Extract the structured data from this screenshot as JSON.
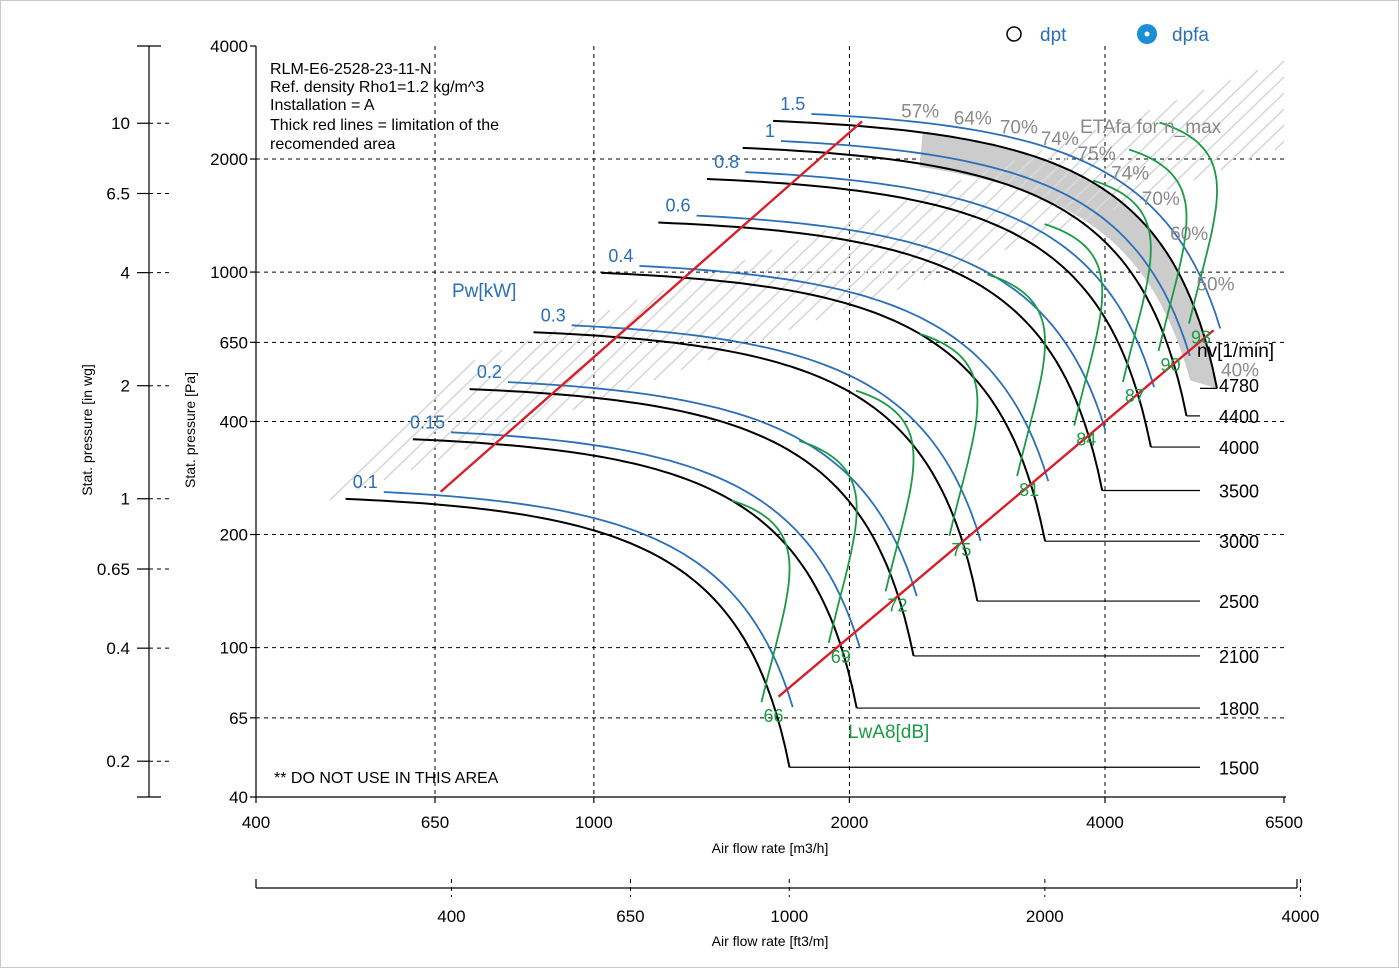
{
  "chart_data": {
    "type": "line",
    "info_lines": [
      "RLM-E6-2528-23-11-N",
      "Ref. density Rho1=1.2 kg/m^3",
      "Installation = A",
      "Thick red lines = limitation of the",
      "recomended area"
    ],
    "warning_note": "** DO NOT USE IN THIS AREA",
    "legend": {
      "items": [
        {
          "label": "dpt",
          "marker": "open-circle"
        },
        {
          "label": "dpfa",
          "marker": "filled-circle-dot"
        }
      ]
    },
    "x_axis": {
      "label": "Air flow rate [m3/h]",
      "scale": "log",
      "range": [
        400,
        6500
      ],
      "ticks": [
        400,
        650,
        1000,
        2000,
        4000,
        6500
      ]
    },
    "x2_axis": {
      "label": "Air flow rate [ft3/m]",
      "scale": "log",
      "ticks": [
        400,
        650,
        1000,
        2000,
        4000
      ]
    },
    "y_axis": {
      "label": "Stat. pressure [Pa]",
      "scale": "log",
      "range": [
        40,
        4000
      ],
      "ticks": [
        40,
        65,
        100,
        200,
        400,
        650,
        1000,
        2000,
        4000
      ]
    },
    "y2_axis": {
      "label": "Stat. pressure [in wg]",
      "scale": "log",
      "ticks": [
        0.2,
        0.4,
        0.65,
        1,
        2,
        4,
        6.5,
        10
      ]
    },
    "speed_header": "nv[1/min]",
    "speed_curves": [
      {
        "rpm": "1500",
        "max_q": 1700,
        "max_p": 258,
        "end_q": 1700,
        "end_p": 48
      },
      {
        "rpm": "1800",
        "max_q": 2040,
        "max_p": 372,
        "end_q": 2040,
        "end_p": 69
      },
      {
        "rpm": "2100",
        "max_q": 2380,
        "max_p": 506,
        "end_q": 2380,
        "end_p": 95
      },
      {
        "rpm": "2500",
        "max_q": 2830,
        "max_p": 717,
        "end_q": 2830,
        "end_p": 133
      },
      {
        "rpm": "3000",
        "max_q": 3400,
        "max_p": 1032,
        "end_q": 3400,
        "end_p": 192
      },
      {
        "rpm": "3500",
        "max_q": 3970,
        "max_p": 1405,
        "end_q": 3970,
        "end_p": 262
      },
      {
        "rpm": "4000",
        "max_q": 4530,
        "max_p": 1835,
        "end_q": 4530,
        "end_p": 342
      },
      {
        "rpm": "4400",
        "max_q": 4990,
        "max_p": 2220,
        "end_q": 4990,
        "end_p": 414
      },
      {
        "rpm": "4780",
        "max_q": 5420,
        "max_p": 2620,
        "end_q": 5420,
        "end_p": 490
      }
    ],
    "power_label": "Pw[kW]",
    "power_values": [
      "0.1",
      "0.15",
      "0.2",
      "0.3",
      "0.4",
      "0.6",
      "0.8",
      "1",
      "1.5"
    ],
    "noise_label": "LwA8[dB]",
    "noise_values": [
      "66",
      "69",
      "72",
      "75",
      "81",
      "84",
      "87",
      "90",
      "93"
    ],
    "efficiency_label": "ETAfa for n_max",
    "efficiency_values": [
      "57%",
      "64%",
      "70%",
      "74%",
      "75%",
      "74%",
      "70%",
      "60%",
      "50%",
      "40%"
    ],
    "colors": {
      "speed_line": "#000000",
      "power_line": "#2a6fb8",
      "noise_line": "#1a9a45",
      "limit_line": "#d81e28",
      "efficiency_text": "#8a8a8a",
      "shaded_area": "#cccccc",
      "legend_accent": "#1a8fd8"
    }
  }
}
